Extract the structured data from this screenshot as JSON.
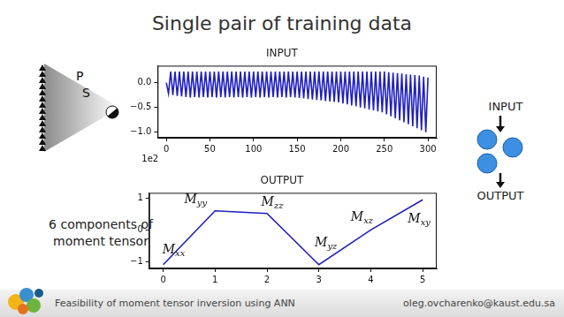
{
  "slide": {
    "title": "Single pair of training data",
    "diagram_labels": [
      "P",
      "S"
    ],
    "network": {
      "input": "INPUT",
      "output": "OUTPUT"
    },
    "side_text": [
      "6 components  of",
      "moment tensor"
    ],
    "footer": {
      "left": "Feasibility of moment tensor inversion using ANN",
      "right": "oleg.ovcharenko@kaust.edu.sa"
    }
  },
  "chart_data": [
    {
      "type": "line",
      "title": "INPUT",
      "x": [
        0,
        2.5,
        5,
        7.5,
        10,
        12.5,
        15,
        17.5,
        20,
        22.5,
        25,
        27.5,
        30,
        32.5,
        35,
        37.5,
        40,
        42.5,
        45,
        47.5,
        50,
        52.5,
        55,
        57.5,
        60,
        62.5,
        65,
        67.5,
        70,
        72.5,
        75,
        77.5,
        80,
        82.5,
        85,
        87.5,
        90,
        92.5,
        95,
        97.5,
        100,
        102.5,
        105,
        107.5,
        110,
        112.5,
        115,
        117.5,
        120,
        122.5,
        125,
        127.5,
        130,
        132.5,
        135,
        137.5,
        140,
        142.5,
        145,
        147.5,
        150,
        152.5,
        155,
        157.5,
        160,
        162.5,
        165,
        167.5,
        170,
        172.5,
        175,
        177.5,
        180,
        182.5,
        185,
        187.5,
        190,
        192.5,
        195,
        197.5,
        200,
        202.5,
        205,
        207.5,
        210,
        212.5,
        215,
        217.5,
        220,
        222.5,
        225,
        227.5,
        230,
        232.5,
        235,
        237.5,
        240,
        242.5,
        245,
        247.5,
        250,
        252.5,
        255,
        257.5,
        260,
        262.5,
        265,
        267.5,
        270,
        272.5,
        275,
        277.5,
        280,
        282.5,
        285,
        287.5,
        290,
        292.5,
        295,
        297.5,
        300
      ],
      "values": [
        0.0,
        -0.22,
        0.22,
        -0.25,
        0.22,
        -0.27,
        0.22,
        -0.28,
        0.22,
        -0.29,
        0.22,
        -0.3,
        0.22,
        -0.29,
        0.22,
        -0.3,
        0.22,
        -0.29,
        0.22,
        -0.3,
        0.22,
        -0.29,
        0.22,
        -0.3,
        0.22,
        -0.29,
        0.22,
        -0.3,
        0.22,
        -0.29,
        0.22,
        -0.3,
        0.22,
        -0.29,
        0.22,
        -0.3,
        0.22,
        -0.29,
        0.22,
        -0.3,
        0.22,
        -0.29,
        0.22,
        -0.3,
        0.22,
        -0.29,
        0.22,
        -0.3,
        0.22,
        -0.29,
        0.22,
        -0.3,
        0.22,
        -0.29,
        0.22,
        -0.3,
        0.22,
        -0.29,
        0.22,
        -0.3,
        0.22,
        -0.31,
        0.22,
        -0.32,
        0.22,
        -0.33,
        0.22,
        -0.34,
        0.22,
        -0.35,
        0.22,
        -0.36,
        0.22,
        -0.37,
        0.22,
        -0.38,
        0.22,
        -0.39,
        0.22,
        -0.4,
        0.22,
        -0.42,
        0.22,
        -0.44,
        0.22,
        -0.46,
        0.22,
        -0.48,
        0.22,
        -0.5,
        0.22,
        -0.52,
        0.22,
        -0.54,
        0.22,
        -0.56,
        0.22,
        -0.58,
        0.22,
        -0.6,
        0.22,
        -0.64,
        0.21,
        -0.68,
        0.2,
        -0.72,
        0.19,
        -0.76,
        0.18,
        -0.8,
        0.17,
        -0.84,
        0.16,
        -0.88,
        0.15,
        -0.92,
        0.14,
        -0.96,
        0.12,
        -1.0,
        0.1
      ],
      "color": "#1f1fbf",
      "xlim": [
        -10,
        310
      ],
      "xticks": [
        0,
        50,
        100,
        150,
        200,
        250,
        300
      ],
      "ylim": [
        -1.11,
        0.34
      ],
      "yticks": [
        {
          "value": -1.0,
          "label": "−1.0"
        },
        {
          "value": -0.5,
          "label": "−0.5"
        },
        {
          "value": 0.0,
          "label": "0.0"
        }
      ],
      "grid": false,
      "annotations": [
        {
          "text": "1e2"
        }
      ]
    },
    {
      "type": "line",
      "title": "OUTPUT",
      "x": [
        0,
        1,
        2,
        3,
        4,
        5
      ],
      "values": [
        -1.1,
        0.6,
        0.52,
        -1.1,
        0.0,
        0.95
      ],
      "point_labels": [
        "Mxx",
        "Myy",
        "Mzz",
        "Myz",
        "Mxz",
        "Mxy"
      ],
      "color": "#1f1fbf",
      "xlim": [
        -0.27,
        5.27
      ],
      "xticks": [
        0,
        1,
        2,
        3,
        4,
        5
      ],
      "ylim": [
        -1.22,
        1.17
      ],
      "yticks": [
        {
          "value": -1,
          "label": "−1"
        },
        0,
        1
      ],
      "grid": false
    }
  ]
}
